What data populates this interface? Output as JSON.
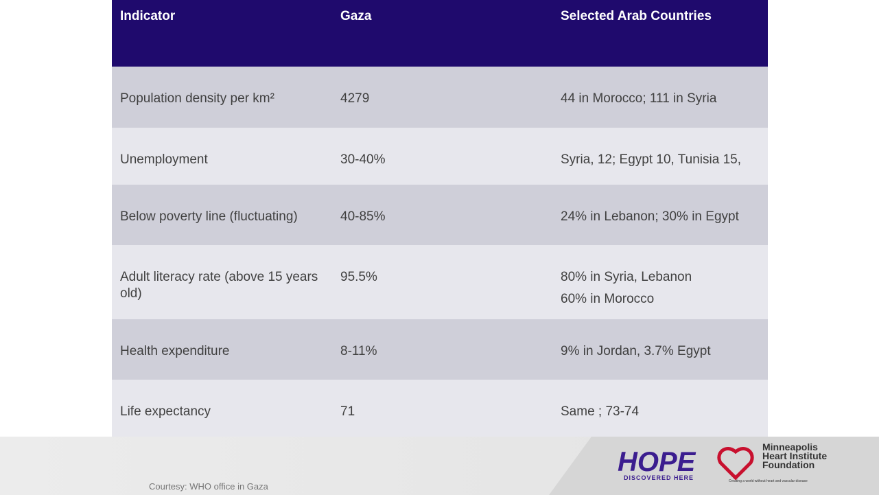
{
  "table": {
    "header": [
      "Indicator",
      "Gaza",
      "Selected Arab Countries"
    ],
    "rows": [
      [
        "Population density per km²",
        "4279",
        "44 in Morocco; 111 in Syria"
      ],
      [
        "Unemployment",
        "30-40%",
        "Syria, 12; Egypt 10, Tunisia 15,"
      ],
      [
        "Below poverty line (fluctuating)",
        "40-85%",
        "24% in Lebanon; 30% in Egypt"
      ],
      [
        "Adult literacy rate (above 15 years old)",
        "95.5%",
        [
          "80% in Syria, Lebanon",
          "60% in Morocco"
        ]
      ],
      [
        "Health expenditure",
        "8-11%",
        "9% in Jordan, 3.7% Egypt"
      ],
      [
        "Life expectancy",
        "71",
        "Same ; 73-74"
      ]
    ]
  },
  "footer": {
    "courtesy": "Courtesy: WHO office in Gaza",
    "hope": "HOPE",
    "hope_tagline": "DISCOVERED HERE",
    "org": [
      "Minneapolis",
      "Heart Institute",
      "Foundation"
    ],
    "org_tagline": "Creating a world without heart and vascular disease"
  }
}
